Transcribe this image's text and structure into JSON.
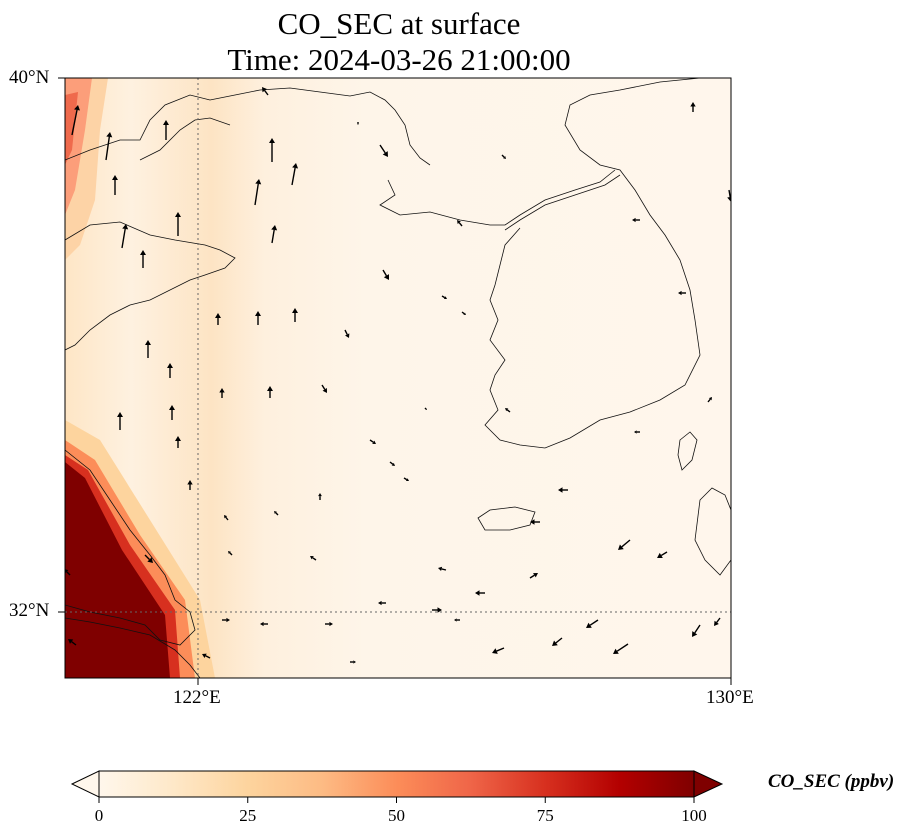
{
  "title_line1": "CO_SEC at surface",
  "title_line2": "Time: 2024-03-26 21:00:00",
  "map": {
    "extent": {
      "lon_min": 118,
      "lon_max": 130,
      "lat_min": 30.8,
      "lat_max": 40
    },
    "lat_ticks": [
      {
        "value": 40,
        "label": "40°N"
      },
      {
        "value": 32,
        "label": "32°N"
      }
    ],
    "lon_ticks": [
      {
        "value": 122,
        "label": "122°E"
      },
      {
        "value": 130,
        "label": "130°E"
      }
    ],
    "gridlines": {
      "lons": [
        122
      ],
      "lats": [
        32
      ],
      "style": "dotted"
    },
    "field": "CO_SEC",
    "unit": "ppbv",
    "colormap": "OrRd",
    "wind_vectors": true
  },
  "colorbar": {
    "label": "CO_SEC (ppbv)",
    "min": 0,
    "max": 100,
    "ticks": [
      0,
      25,
      50,
      75,
      100
    ],
    "extend": "both",
    "colors": [
      "#fff7ec",
      "#fee8c8",
      "#fdd49e",
      "#fdbb84",
      "#fc8d59",
      "#ef6548",
      "#d7301f",
      "#b30000",
      "#7f0000"
    ]
  }
}
